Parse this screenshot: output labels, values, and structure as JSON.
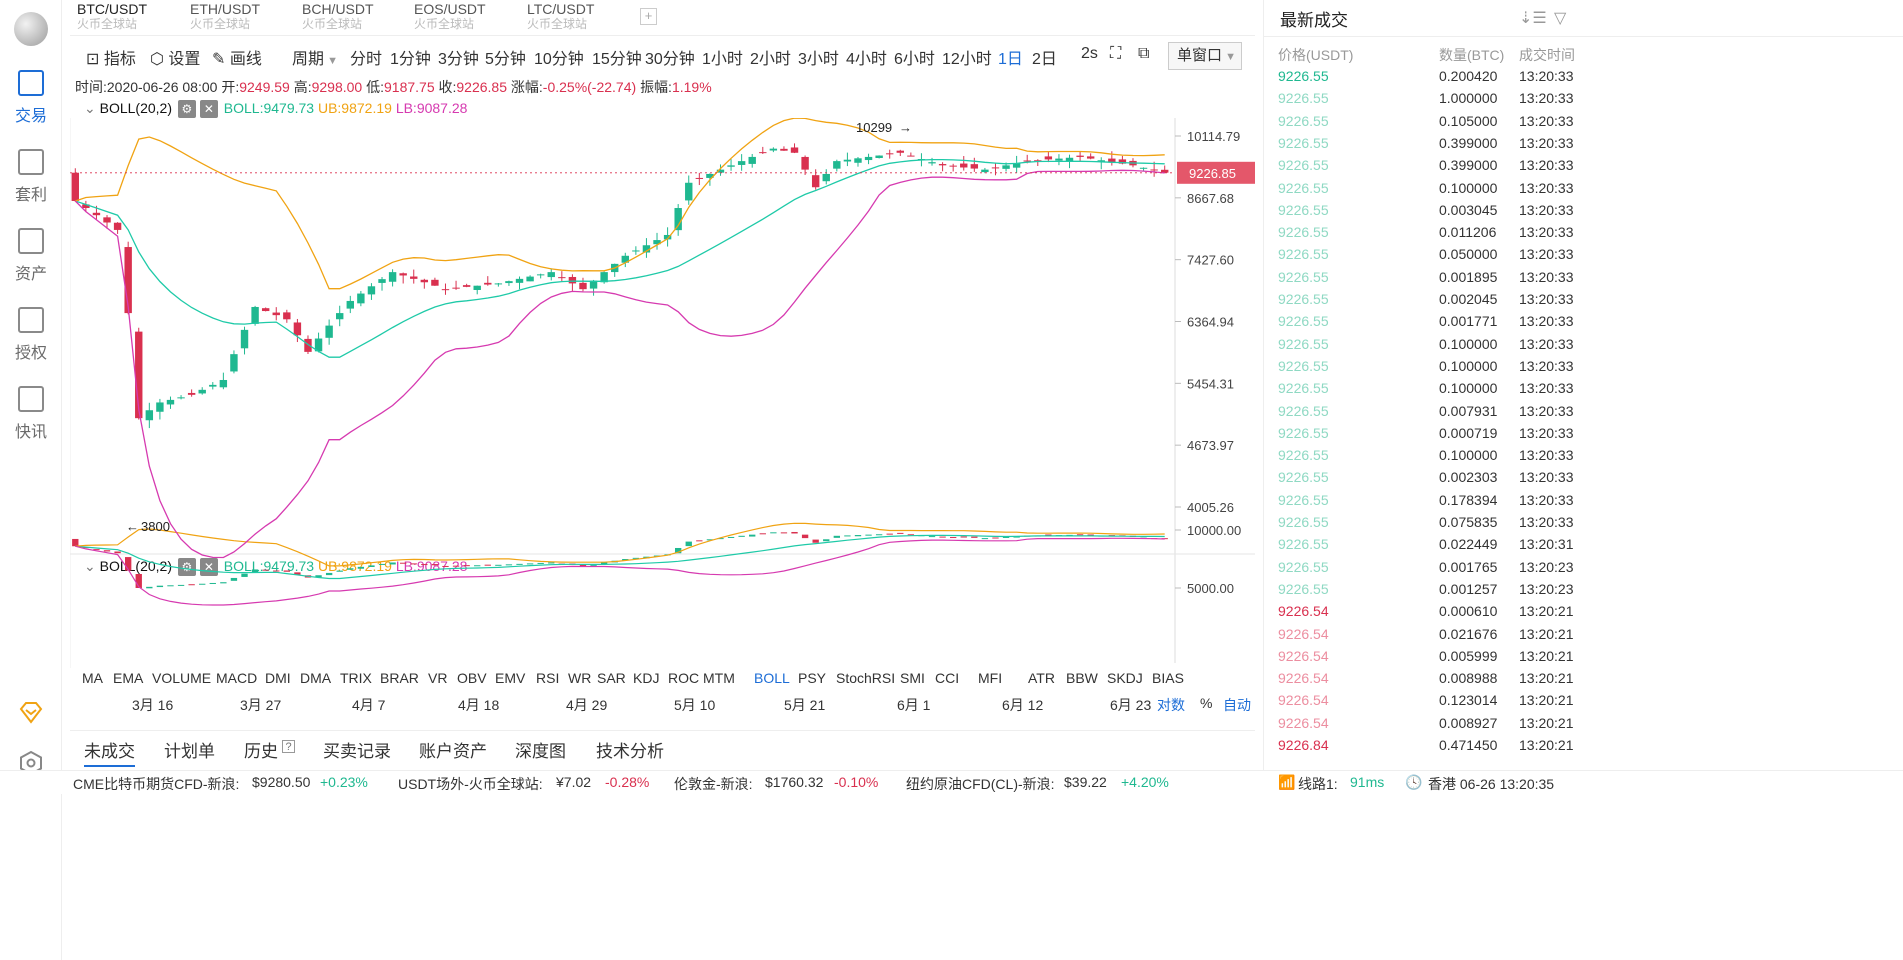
{
  "tabs": [
    {
      "name": "BTC/USDT",
      "sub": "火币全球站"
    },
    {
      "name": "ETH/USDT",
      "sub": "火币全球站"
    },
    {
      "name": "BCH/USDT",
      "sub": "火币全球站"
    },
    {
      "name": "EOS/USDT",
      "sub": "火币全球站"
    },
    {
      "name": "LTC/USDT",
      "sub": "火币全球站"
    }
  ],
  "tab_add": "+",
  "sidebar": [
    {
      "label": "交易",
      "icon": "trade-icon"
    },
    {
      "label": "套利",
      "icon": "arbitrage-icon"
    },
    {
      "label": "资产",
      "icon": "assets-icon"
    },
    {
      "label": "授权",
      "icon": "key-icon"
    },
    {
      "label": "快讯",
      "icon": "news-icon"
    }
  ],
  "toolbar": {
    "indicator": "指标",
    "settings": "设置",
    "draw": "画线",
    "period": "周期",
    "periods": [
      "分时",
      "1分钟",
      "3分钟",
      "5分钟",
      "10分钟",
      "15分钟",
      "30分钟",
      "1小时",
      "2小时",
      "3小时",
      "4小时",
      "6小时",
      "12小时",
      "1日",
      "2日"
    ],
    "interval": "2s",
    "window": "单窗口"
  },
  "info": {
    "time": "时间:2020-06-26 08:00",
    "open_l": "开:",
    "open": "9249.59",
    "high_l": "高:",
    "high": "9298.00",
    "low_l": "低:",
    "low": "9187.75",
    "close_l": "收:",
    "close": "9226.85",
    "chg_l": "涨幅:",
    "chg": "-0.25%(-22.74)",
    "amp_l": "振幅:",
    "amp": "1.19%"
  },
  "boll": {
    "name": "BOLL(20,2)",
    "mid": "BOLL:9479.73",
    "ub": "UB:9872.19",
    "lb": "LB:9087.28"
  },
  "yaxis_main": [
    "10114.79",
    "8667.68",
    "7427.60",
    "6364.94",
    "5454.31",
    "4673.97",
    "4005.26"
  ],
  "yaxis_sub": [
    "10000.00",
    "5000.00"
  ],
  "price_tag": "9226.85",
  "marks": {
    "high": "10299",
    "low": "3800"
  },
  "indicators": [
    "MA",
    "EMA",
    "VOLUME",
    "MACD",
    "DMI",
    "DMA",
    "TRIX",
    "BRAR",
    "VR",
    "OBV",
    "EMV",
    "RSI",
    "WR",
    "SAR",
    "KDJ",
    "ROC",
    "MTM",
    "BOLL",
    "PSY",
    "StochRSI",
    "SMI",
    "CCI",
    "MFI",
    "ATR",
    "BBW",
    "SKDJ",
    "BIAS"
  ],
  "dates": [
    "3月 16",
    "3月 27",
    "4月 7",
    "4月 18",
    "4月 29",
    "5月 10",
    "5月 21",
    "6月 1",
    "6月 12",
    "6月 23"
  ],
  "axis_opts": {
    "log": "对数",
    "pct": "%",
    "auto": "自动"
  },
  "bottom_tabs": [
    "未成交",
    "计划单",
    "历史",
    "买卖记录",
    "账户资产",
    "深度图",
    "技术分析"
  ],
  "history_help": "?",
  "trades": {
    "title": "最新成交",
    "headers": {
      "price": "价格(USDT)",
      "qty": "数量(BTC)",
      "time": "成交时间"
    },
    "rows": [
      {
        "p": "9226.55",
        "q": "0.200420",
        "t": "13:20:33",
        "side": "buy"
      },
      {
        "p": "9226.55",
        "q": "1.000000",
        "t": "13:20:33",
        "side": "buy"
      },
      {
        "p": "9226.55",
        "q": "0.105000",
        "t": "13:20:33",
        "side": "buy"
      },
      {
        "p": "9226.55",
        "q": "0.399000",
        "t": "13:20:33",
        "side": "buy"
      },
      {
        "p": "9226.55",
        "q": "0.399000",
        "t": "13:20:33",
        "side": "buy"
      },
      {
        "p": "9226.55",
        "q": "0.100000",
        "t": "13:20:33",
        "side": "buy"
      },
      {
        "p": "9226.55",
        "q": "0.003045",
        "t": "13:20:33",
        "side": "buy"
      },
      {
        "p": "9226.55",
        "q": "0.011206",
        "t": "13:20:33",
        "side": "buy"
      },
      {
        "p": "9226.55",
        "q": "0.050000",
        "t": "13:20:33",
        "side": "buy"
      },
      {
        "p": "9226.55",
        "q": "0.001895",
        "t": "13:20:33",
        "side": "buy"
      },
      {
        "p": "9226.55",
        "q": "0.002045",
        "t": "13:20:33",
        "side": "buy"
      },
      {
        "p": "9226.55",
        "q": "0.001771",
        "t": "13:20:33",
        "side": "buy"
      },
      {
        "p": "9226.55",
        "q": "0.100000",
        "t": "13:20:33",
        "side": "buy"
      },
      {
        "p": "9226.55",
        "q": "0.100000",
        "t": "13:20:33",
        "side": "buy"
      },
      {
        "p": "9226.55",
        "q": "0.100000",
        "t": "13:20:33",
        "side": "buy"
      },
      {
        "p": "9226.55",
        "q": "0.007931",
        "t": "13:20:33",
        "side": "buy"
      },
      {
        "p": "9226.55",
        "q": "0.000719",
        "t": "13:20:33",
        "side": "buy"
      },
      {
        "p": "9226.55",
        "q": "0.100000",
        "t": "13:20:33",
        "side": "buy"
      },
      {
        "p": "9226.55",
        "q": "0.002303",
        "t": "13:20:33",
        "side": "buy"
      },
      {
        "p": "9226.55",
        "q": "0.178394",
        "t": "13:20:33",
        "side": "buy"
      },
      {
        "p": "9226.55",
        "q": "0.075835",
        "t": "13:20:33",
        "side": "buy"
      },
      {
        "p": "9226.55",
        "q": "0.022449",
        "t": "13:20:31",
        "side": "buy"
      },
      {
        "p": "9226.55",
        "q": "0.001765",
        "t": "13:20:23",
        "side": "buy"
      },
      {
        "p": "9226.55",
        "q": "0.001257",
        "t": "13:20:23",
        "side": "buy"
      },
      {
        "p": "9226.54",
        "q": "0.000610",
        "t": "13:20:21",
        "side": "sell"
      },
      {
        "p": "9226.54",
        "q": "0.021676",
        "t": "13:20:21",
        "side": "sell"
      },
      {
        "p": "9226.54",
        "q": "0.005999",
        "t": "13:20:21",
        "side": "sell"
      },
      {
        "p": "9226.54",
        "q": "0.008988",
        "t": "13:20:21",
        "side": "sell"
      },
      {
        "p": "9226.54",
        "q": "0.123014",
        "t": "13:20:21",
        "side": "sell"
      },
      {
        "p": "9226.54",
        "q": "0.008927",
        "t": "13:20:21",
        "side": "sell"
      },
      {
        "p": "9226.84",
        "q": "0.471450",
        "t": "13:20:21",
        "side": "sell"
      }
    ]
  },
  "footer": [
    {
      "label": "CME比特币期货CFD-新浪:",
      "value": "$9280.50",
      "chg": "+0.23%",
      "dir": "up"
    },
    {
      "label": "USDT场外-火币全球站:",
      "value": "¥7.02",
      "chg": "-0.28%",
      "dir": "down"
    },
    {
      "label": "伦敦金-新浪:",
      "value": "$1760.32",
      "chg": "-0.10%",
      "dir": "down"
    },
    {
      "label": "纽约原油CFD(CL)-新浪:",
      "value": "$39.22",
      "chg": "+4.20%",
      "dir": "up"
    }
  ],
  "status": {
    "line": "线路1:",
    "ping": "91ms",
    "region": "香港 06-26 13:20:35"
  },
  "colors": {
    "up": "#1fb890",
    "down": "#d9304f",
    "mid": "#1fcaa8",
    "ub": "#f0a313",
    "lb": "#d63ab0",
    "accent": "#1d6dd6"
  }
}
